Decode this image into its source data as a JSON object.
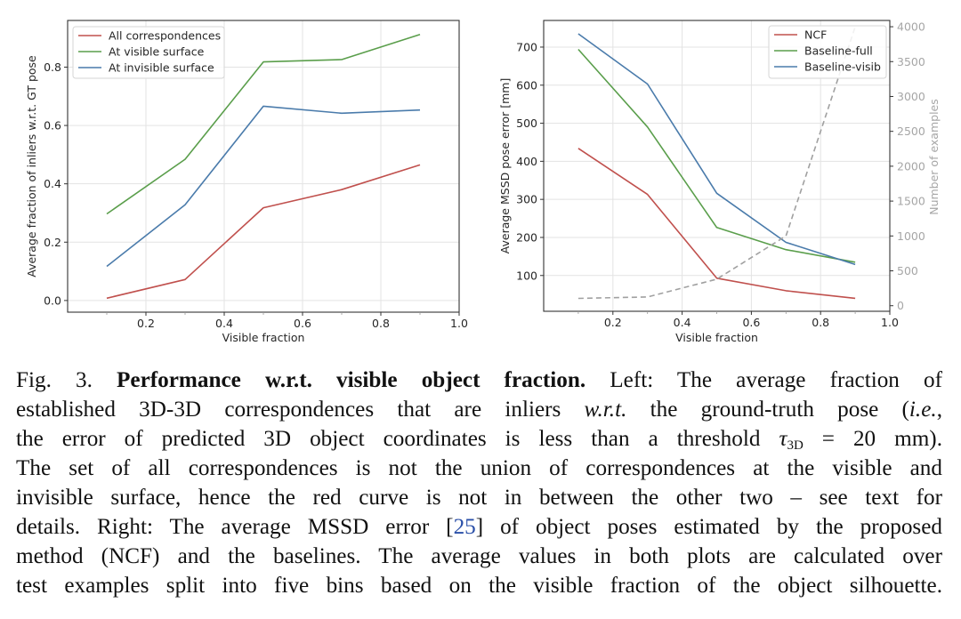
{
  "chart_data": [
    {
      "type": "line",
      "position": "left",
      "title": "",
      "xlabel": "Visible fraction",
      "ylabel": "Average fraction of inliers w.r.t. GT pose",
      "xlim": [
        0.0,
        1.0
      ],
      "ylim": [
        -0.04,
        0.96
      ],
      "xticks": [
        0.2,
        0.4,
        0.6,
        0.8,
        1.0
      ],
      "xtick_labels": [
        "0.2",
        "0.4",
        "0.6",
        "0.8",
        "1.0"
      ],
      "yticks": [
        0.0,
        0.2,
        0.4,
        0.6,
        0.8
      ],
      "ytick_labels": [
        "0.0",
        "0.2",
        "0.4",
        "0.6",
        "0.8"
      ],
      "minor_xticks": [
        0.1,
        0.3,
        0.5,
        0.7,
        0.9
      ],
      "grid": true,
      "legend_position": "top-left",
      "x": [
        0.1,
        0.3,
        0.5,
        0.7,
        0.9
      ],
      "series": [
        {
          "name": "All correspondences",
          "color": "#c0504d",
          "values": [
            0.008,
            0.072,
            0.318,
            0.38,
            0.465
          ]
        },
        {
          "name": "At visible surface",
          "color": "#5a9e4b",
          "values": [
            0.297,
            0.484,
            0.818,
            0.826,
            0.912
          ]
        },
        {
          "name": "At invisible surface",
          "color": "#4a7bab",
          "values": [
            0.117,
            0.328,
            0.666,
            0.642,
            0.653
          ]
        }
      ]
    },
    {
      "type": "line",
      "position": "right",
      "title": "",
      "xlabel": "Visible fraction",
      "ylabel": "Average MSSD pose error [mm]",
      "y2label": "Number of examples",
      "xlim": [
        0.0,
        1.0
      ],
      "ylim": [
        6,
        770
      ],
      "y2lim": [
        -80,
        4090
      ],
      "xticks": [
        0.2,
        0.4,
        0.6,
        0.8,
        1.0
      ],
      "xtick_labels": [
        "0.2",
        "0.4",
        "0.6",
        "0.8",
        "1.0"
      ],
      "yticks": [
        100,
        200,
        300,
        400,
        500,
        600,
        700
      ],
      "ytick_labels": [
        "100",
        "200",
        "300",
        "400",
        "500",
        "600",
        "700"
      ],
      "y2ticks": [
        0,
        500,
        1000,
        1500,
        2000,
        2500,
        3000,
        3500,
        4000
      ],
      "y2tick_labels": [
        "0",
        "500",
        "1000",
        "1500",
        "2000",
        "2500",
        "3000",
        "3500",
        "4000"
      ],
      "minor_xticks": [
        0.1,
        0.3,
        0.5,
        0.7,
        0.9
      ],
      "grid": true,
      "legend_position": "top-right",
      "x": [
        0.1,
        0.3,
        0.5,
        0.7,
        0.9
      ],
      "series": [
        {
          "name": "NCF",
          "color": "#c0504d",
          "values": [
            434,
            313,
            93,
            60,
            40
          ]
        },
        {
          "name": "Baseline-full",
          "color": "#5a9e4b",
          "values": [
            694,
            490,
            226,
            168,
            135
          ]
        },
        {
          "name": "Baseline-visib",
          "color": "#4a7bab",
          "values": [
            735,
            603,
            316,
            187,
            129
          ]
        }
      ],
      "secondary_series": [
        {
          "name": "Number of examples",
          "axis": "right",
          "style": "dashed",
          "color": "#a0a0a0",
          "values": [
            105,
            125,
            380,
            1000,
            4000
          ]
        }
      ]
    }
  ],
  "caption": {
    "fig_label": "Fig. 3.",
    "title": "Performance w.r.t. visible object fraction.",
    "lines": [
      {
        "segments": [
          {
            "t": "Fig. 3.  ",
            "s": "n"
          },
          {
            "t": "Performance w.r.t. visible object fraction.",
            "s": "b"
          },
          {
            "t": " Left: The average fraction of",
            "s": "n"
          }
        ]
      },
      {
        "segments": [
          {
            "t": "established 3D-3D correspondences that are inliers ",
            "s": "n"
          },
          {
            "t": "w.r.t.",
            "s": "i"
          },
          {
            "t": " the ground-truth pose (",
            "s": "n"
          },
          {
            "t": "i.e.",
            "s": "i"
          },
          {
            "t": ",",
            "s": "n"
          }
        ]
      },
      {
        "segments": [
          {
            "t": "the error of predicted 3D object coordinates is less than a threshold ",
            "s": "n"
          },
          {
            "t": "τ",
            "s": "i"
          },
          {
            "t": "3D",
            "s": "sub"
          },
          {
            "t": " = 20 mm).",
            "s": "n"
          }
        ]
      },
      {
        "segments": [
          {
            "t": "The set of all correspondences is not the union of correspondences at the visible and",
            "s": "n"
          }
        ]
      },
      {
        "segments": [
          {
            "t": "invisible surface, hence the red curve is not in between the other two – see text for",
            "s": "n"
          }
        ]
      },
      {
        "segments": [
          {
            "t": "details. Right: The average MSSD error ",
            "s": "n"
          },
          {
            "t": "[",
            "s": "n"
          },
          {
            "t": "25",
            "s": "cite"
          },
          {
            "t": "]",
            "s": "n"
          },
          {
            "t": " of object poses estimated by the proposed",
            "s": "n"
          }
        ]
      },
      {
        "segments": [
          {
            "t": "method (NCF) and the baselines. The average values in both plots are calculated over",
            "s": "n"
          }
        ]
      },
      {
        "segments": [
          {
            "t": "test examples split into five bins based on the visible fraction of the object silhouette.",
            "s": "n"
          }
        ]
      }
    ],
    "citation": "25"
  }
}
